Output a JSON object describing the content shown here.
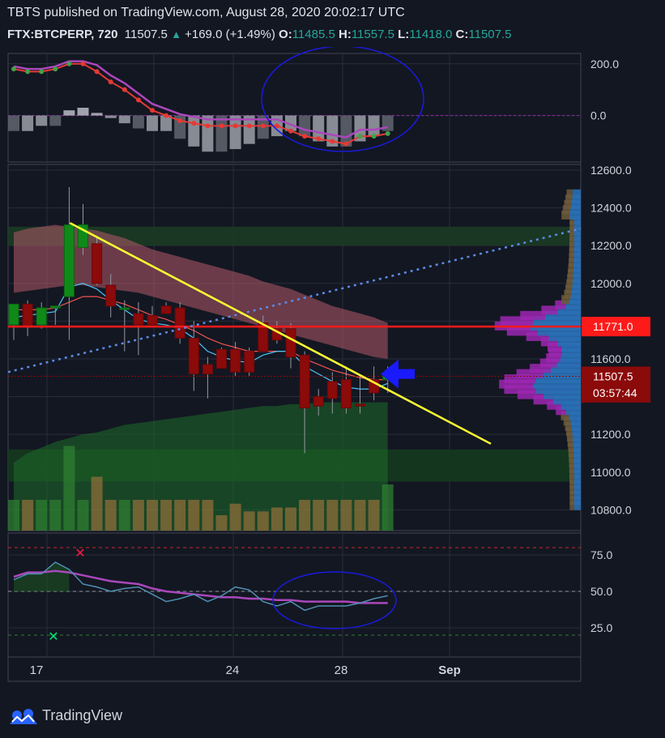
{
  "header": {
    "line1": "TBTS published on TradingView.com, August 28, 2020 20:02:17 UTC",
    "symbol": "FTX:BTCPERP, 720",
    "last": "11507.5",
    "change": "+169.0 (+1.49%)",
    "o_label": "O:",
    "o_value": "11485.5",
    "h_label": "H:",
    "h_value": "11557.5",
    "l_label": "L:",
    "l_value": "11418.0",
    "c_label": "C:",
    "c_value": "11507.5"
  },
  "footer": {
    "brand": "TradingView"
  },
  "colors": {
    "bg": "#131722",
    "up": "#0f8a18",
    "down": "#8b0a0a",
    "price_line": "#ff1a1a",
    "trend": "#ffff33"
  },
  "chart_data": {
    "type": "candlestick",
    "x_ticks": [
      "17",
      "24",
      "28",
      "Sep"
    ],
    "price_axis": {
      "ticks": [
        "12600.0",
        "12400.0",
        "12200.0",
        "12000.0",
        "11600.0",
        "11200.0",
        "11000.0",
        "10800.0"
      ],
      "ylim": [
        10690,
        12630
      ]
    },
    "price_labels": [
      {
        "value": 11771,
        "text": "11771.0",
        "color": "#ff1a1a"
      },
      {
        "value": 11507.5,
        "text": "11507.5",
        "color": "#8b0a0a"
      },
      {
        "value": 11420,
        "text": "03:57:44",
        "color": "#8b0a0a"
      }
    ],
    "candles": [
      {
        "o": 11780,
        "h": 11880,
        "l": 11700,
        "c": 11890
      },
      {
        "o": 11890,
        "h": 11910,
        "l": 11720,
        "c": 11770
      },
      {
        "o": 11780,
        "h": 11900,
        "l": 11760,
        "c": 11870
      },
      {
        "o": 11870,
        "h": 11880,
        "l": 11780,
        "c": 11880
      },
      {
        "o": 11930,
        "h": 12510,
        "l": 11700,
        "c": 12310
      },
      {
        "o": 12190,
        "h": 12420,
        "l": 12150,
        "c": 12310
      },
      {
        "o": 12210,
        "h": 12250,
        "l": 11990,
        "c": 12000
      },
      {
        "o": 11990,
        "h": 12050,
        "l": 11820,
        "c": 11880
      },
      {
        "o": 11870,
        "h": 11910,
        "l": 11640,
        "c": 11870
      },
      {
        "o": 11840,
        "h": 11900,
        "l": 11620,
        "c": 11780
      },
      {
        "o": 11830,
        "h": 11880,
        "l": 11780,
        "c": 11780
      },
      {
        "o": 11880,
        "h": 11900,
        "l": 11840,
        "c": 11840
      },
      {
        "o": 11870,
        "h": 11900,
        "l": 11680,
        "c": 11710
      },
      {
        "o": 11710,
        "h": 11800,
        "l": 11430,
        "c": 11520
      },
      {
        "o": 11570,
        "h": 11610,
        "l": 11390,
        "c": 11520
      },
      {
        "o": 11650,
        "h": 11660,
        "l": 11550,
        "c": 11550
      },
      {
        "o": 11650,
        "h": 11690,
        "l": 11510,
        "c": 11530
      },
      {
        "o": 11640,
        "h": 11660,
        "l": 11510,
        "c": 11530
      },
      {
        "o": 11790,
        "h": 11830,
        "l": 11640,
        "c": 11640
      },
      {
        "o": 11760,
        "h": 11800,
        "l": 11680,
        "c": 11700
      },
      {
        "o": 11760,
        "h": 11790,
        "l": 11550,
        "c": 11610
      },
      {
        "o": 11620,
        "h": 11640,
        "l": 11100,
        "c": 11340
      },
      {
        "o": 11400,
        "h": 11440,
        "l": 11300,
        "c": 11350
      },
      {
        "o": 11480,
        "h": 11530,
        "l": 11310,
        "c": 11390
      },
      {
        "o": 11490,
        "h": 11560,
        "l": 11310,
        "c": 11340
      },
      {
        "o": 11360,
        "h": 11510,
        "l": 11310,
        "c": 11350
      },
      {
        "o": 11490,
        "h": 11560,
        "l": 11380,
        "c": 11420
      },
      {
        "o": 11490,
        "h": 11560,
        "l": 11420,
        "c": 11510
      }
    ],
    "volume": [
      40,
      40,
      40,
      40,
      110,
      40,
      70,
      40,
      40,
      40,
      40,
      40,
      40,
      40,
      40,
      20,
      35,
      25,
      25,
      30,
      30,
      40,
      40,
      40,
      40,
      40,
      40,
      60
    ],
    "macd_axis": {
      "ticks": [
        "200.0",
        "0.0"
      ],
      "ylim": [
        -180,
        240
      ]
    },
    "macd_hist": [
      -60,
      -60,
      -40,
      -40,
      20,
      30,
      10,
      -10,
      -30,
      -50,
      -60,
      -60,
      -90,
      -120,
      -140,
      -140,
      -130,
      -110,
      -90,
      -80,
      -60,
      -80,
      -100,
      -120,
      -120,
      -100,
      -80,
      -60
    ],
    "macd_line": [
      180,
      170,
      170,
      180,
      200,
      200,
      170,
      130,
      100,
      60,
      20,
      0,
      -20,
      -30,
      -40,
      -40,
      -40,
      -40,
      -40,
      -40,
      -60,
      -80,
      -90,
      -100,
      -110,
      -80,
      -80,
      -70
    ],
    "rsi_axis": {
      "ticks": [
        "75.0",
        "50.0",
        "25.0"
      ],
      "ylim": [
        5,
        90
      ]
    },
    "rsi": [
      58,
      62,
      62,
      70,
      65,
      55,
      53,
      50,
      52,
      53,
      48,
      43,
      45,
      48,
      43,
      47,
      53,
      51,
      43,
      40,
      43,
      37,
      40,
      40,
      40,
      42,
      45,
      47
    ],
    "rsi_ma": [
      60,
      63,
      63,
      64,
      63,
      61,
      59,
      57,
      56,
      55,
      52,
      50,
      49,
      48,
      47,
      46,
      46,
      45,
      45,
      44,
      44,
      43,
      43,
      43,
      43,
      42,
      42,
      42
    ]
  }
}
